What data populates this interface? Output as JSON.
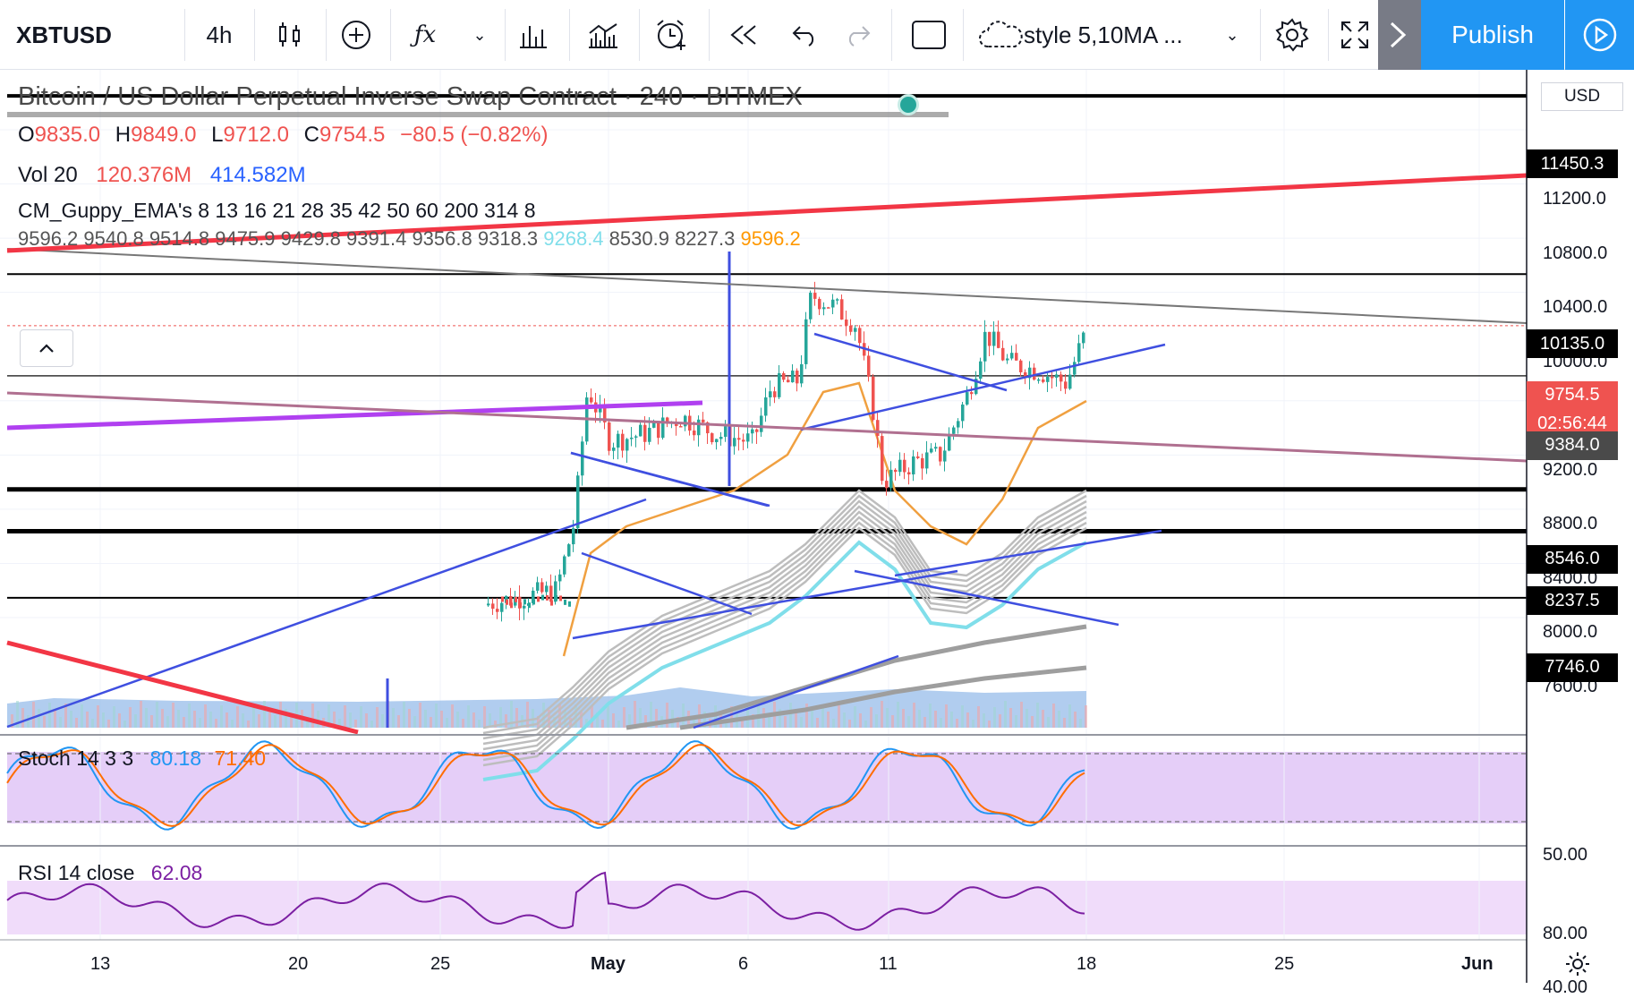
{
  "toolbar": {
    "symbol": "XBTUSD",
    "interval": "4h",
    "style_template": "style 5,10MA ...",
    "publish_label": "Publish"
  },
  "legend": {
    "title": "Bitcoin / US Dollar Perpetual Inverse Swap Contract · 240 · BITMEX",
    "ohlc": {
      "o": "9835.0",
      "h": "9849.0",
      "l": "9712.0",
      "c": "9754.5",
      "chg": "−80.5 (−0.82%)"
    },
    "vol": {
      "label": "Vol 20",
      "v1": "120.376M",
      "v2": "414.582M"
    },
    "guppy_label": "CM_Guppy_EMA's 8 13 16 21 28 35 42 50 60 200 314 8",
    "guppy_values": [
      "9596.2",
      "9540.8",
      "9514.8",
      "9475.9",
      "9429.8",
      "9391.4",
      "9356.8",
      "9318.3",
      "9268.4",
      "8530.9",
      "8227.3",
      "9596.2"
    ],
    "stoch": {
      "label": "Stoch 14 3 3",
      "k": "80.18",
      "d": "71.40"
    },
    "rsi": {
      "label": "RSI 14 close",
      "v": "62.08"
    }
  },
  "price_axis": {
    "currency": "USD",
    "ticks": [
      "11200.0",
      "10800.0",
      "10400.0",
      "10000.0",
      "9200.0",
      "8800.0",
      "8400.0",
      "8000.0",
      "7600.0"
    ],
    "top_tag": "11450.3",
    "tags": [
      {
        "v": "10135.0",
        "bg": "#000000"
      },
      {
        "v": "9754.5",
        "bg": "#ef5350"
      },
      {
        "v": "02:56:44",
        "bg": "#ef5350"
      },
      {
        "v": "9384.0",
        "bg": "#4a4a4a"
      },
      {
        "v": "8546.0",
        "bg": "#000000"
      },
      {
        "v": "8237.5",
        "bg": "#000000"
      },
      {
        "v": "7746.0",
        "bg": "#000000"
      }
    ],
    "stoch_tick": "50.00",
    "rsi_ticks": [
      "80.00",
      "40.00"
    ]
  },
  "time_axis": [
    "13",
    "20",
    "25",
    "May",
    "6",
    "11",
    "18",
    "25",
    "Jun"
  ],
  "colors": {
    "up": "#26a69a",
    "down": "#ef5350",
    "blue_line": "#3f4fe0",
    "red_line": "#f23645",
    "purple": "#b040f0",
    "stoch_bg": "#e1c6f7",
    "rsi_bg": "#f0dcfa"
  }
}
